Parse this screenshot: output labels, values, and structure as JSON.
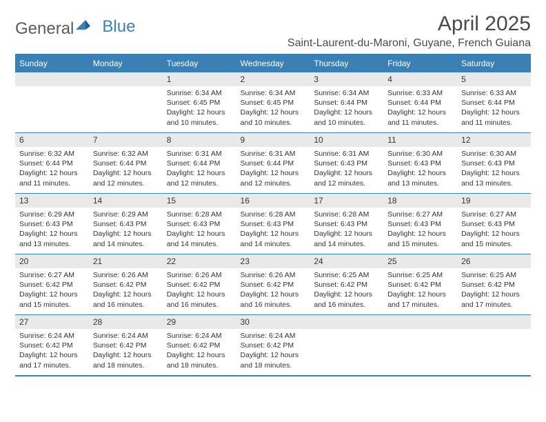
{
  "brand": {
    "part1": "General",
    "part2": "Blue"
  },
  "title": "April 2025",
  "location": "Saint-Laurent-du-Maroni, Guyane, French Guiana",
  "colors": {
    "header_blue": "#3a80b5",
    "daynum_bg": "#e9e9e9",
    "text": "#333333",
    "title_text": "#4a4a4a",
    "logo_gray": "#5a5a5a",
    "logo_blue": "#3e7fb5",
    "background": "#ffffff"
  },
  "day_headers": [
    "Sunday",
    "Monday",
    "Tuesday",
    "Wednesday",
    "Thursday",
    "Friday",
    "Saturday"
  ],
  "weeks": [
    [
      null,
      null,
      {
        "n": "1",
        "sunrise": "6:34 AM",
        "sunset": "6:45 PM",
        "daylight": "12 hours and 10 minutes."
      },
      {
        "n": "2",
        "sunrise": "6:34 AM",
        "sunset": "6:45 PM",
        "daylight": "12 hours and 10 minutes."
      },
      {
        "n": "3",
        "sunrise": "6:34 AM",
        "sunset": "6:44 PM",
        "daylight": "12 hours and 10 minutes."
      },
      {
        "n": "4",
        "sunrise": "6:33 AM",
        "sunset": "6:44 PM",
        "daylight": "12 hours and 11 minutes."
      },
      {
        "n": "5",
        "sunrise": "6:33 AM",
        "sunset": "6:44 PM",
        "daylight": "12 hours and 11 minutes."
      }
    ],
    [
      {
        "n": "6",
        "sunrise": "6:32 AM",
        "sunset": "6:44 PM",
        "daylight": "12 hours and 11 minutes."
      },
      {
        "n": "7",
        "sunrise": "6:32 AM",
        "sunset": "6:44 PM",
        "daylight": "12 hours and 12 minutes."
      },
      {
        "n": "8",
        "sunrise": "6:31 AM",
        "sunset": "6:44 PM",
        "daylight": "12 hours and 12 minutes."
      },
      {
        "n": "9",
        "sunrise": "6:31 AM",
        "sunset": "6:44 PM",
        "daylight": "12 hours and 12 minutes."
      },
      {
        "n": "10",
        "sunrise": "6:31 AM",
        "sunset": "6:43 PM",
        "daylight": "12 hours and 12 minutes."
      },
      {
        "n": "11",
        "sunrise": "6:30 AM",
        "sunset": "6:43 PM",
        "daylight": "12 hours and 13 minutes."
      },
      {
        "n": "12",
        "sunrise": "6:30 AM",
        "sunset": "6:43 PM",
        "daylight": "12 hours and 13 minutes."
      }
    ],
    [
      {
        "n": "13",
        "sunrise": "6:29 AM",
        "sunset": "6:43 PM",
        "daylight": "12 hours and 13 minutes."
      },
      {
        "n": "14",
        "sunrise": "6:29 AM",
        "sunset": "6:43 PM",
        "daylight": "12 hours and 14 minutes."
      },
      {
        "n": "15",
        "sunrise": "6:28 AM",
        "sunset": "6:43 PM",
        "daylight": "12 hours and 14 minutes."
      },
      {
        "n": "16",
        "sunrise": "6:28 AM",
        "sunset": "6:43 PM",
        "daylight": "12 hours and 14 minutes."
      },
      {
        "n": "17",
        "sunrise": "6:28 AM",
        "sunset": "6:43 PM",
        "daylight": "12 hours and 14 minutes."
      },
      {
        "n": "18",
        "sunrise": "6:27 AM",
        "sunset": "6:43 PM",
        "daylight": "12 hours and 15 minutes."
      },
      {
        "n": "19",
        "sunrise": "6:27 AM",
        "sunset": "6:43 PM",
        "daylight": "12 hours and 15 minutes."
      }
    ],
    [
      {
        "n": "20",
        "sunrise": "6:27 AM",
        "sunset": "6:42 PM",
        "daylight": "12 hours and 15 minutes."
      },
      {
        "n": "21",
        "sunrise": "6:26 AM",
        "sunset": "6:42 PM",
        "daylight": "12 hours and 16 minutes."
      },
      {
        "n": "22",
        "sunrise": "6:26 AM",
        "sunset": "6:42 PM",
        "daylight": "12 hours and 16 minutes."
      },
      {
        "n": "23",
        "sunrise": "6:26 AM",
        "sunset": "6:42 PM",
        "daylight": "12 hours and 16 minutes."
      },
      {
        "n": "24",
        "sunrise": "6:25 AM",
        "sunset": "6:42 PM",
        "daylight": "12 hours and 16 minutes."
      },
      {
        "n": "25",
        "sunrise": "6:25 AM",
        "sunset": "6:42 PM",
        "daylight": "12 hours and 17 minutes."
      },
      {
        "n": "26",
        "sunrise": "6:25 AM",
        "sunset": "6:42 PM",
        "daylight": "12 hours and 17 minutes."
      }
    ],
    [
      {
        "n": "27",
        "sunrise": "6:24 AM",
        "sunset": "6:42 PM",
        "daylight": "12 hours and 17 minutes."
      },
      {
        "n": "28",
        "sunrise": "6:24 AM",
        "sunset": "6:42 PM",
        "daylight": "12 hours and 18 minutes."
      },
      {
        "n": "29",
        "sunrise": "6:24 AM",
        "sunset": "6:42 PM",
        "daylight": "12 hours and 18 minutes."
      },
      {
        "n": "30",
        "sunrise": "6:24 AM",
        "sunset": "6:42 PM",
        "daylight": "12 hours and 18 minutes."
      },
      null,
      null,
      null
    ]
  ],
  "labels": {
    "sunrise_prefix": "Sunrise: ",
    "sunset_prefix": "Sunset: ",
    "daylight_prefix": "Daylight: "
  }
}
